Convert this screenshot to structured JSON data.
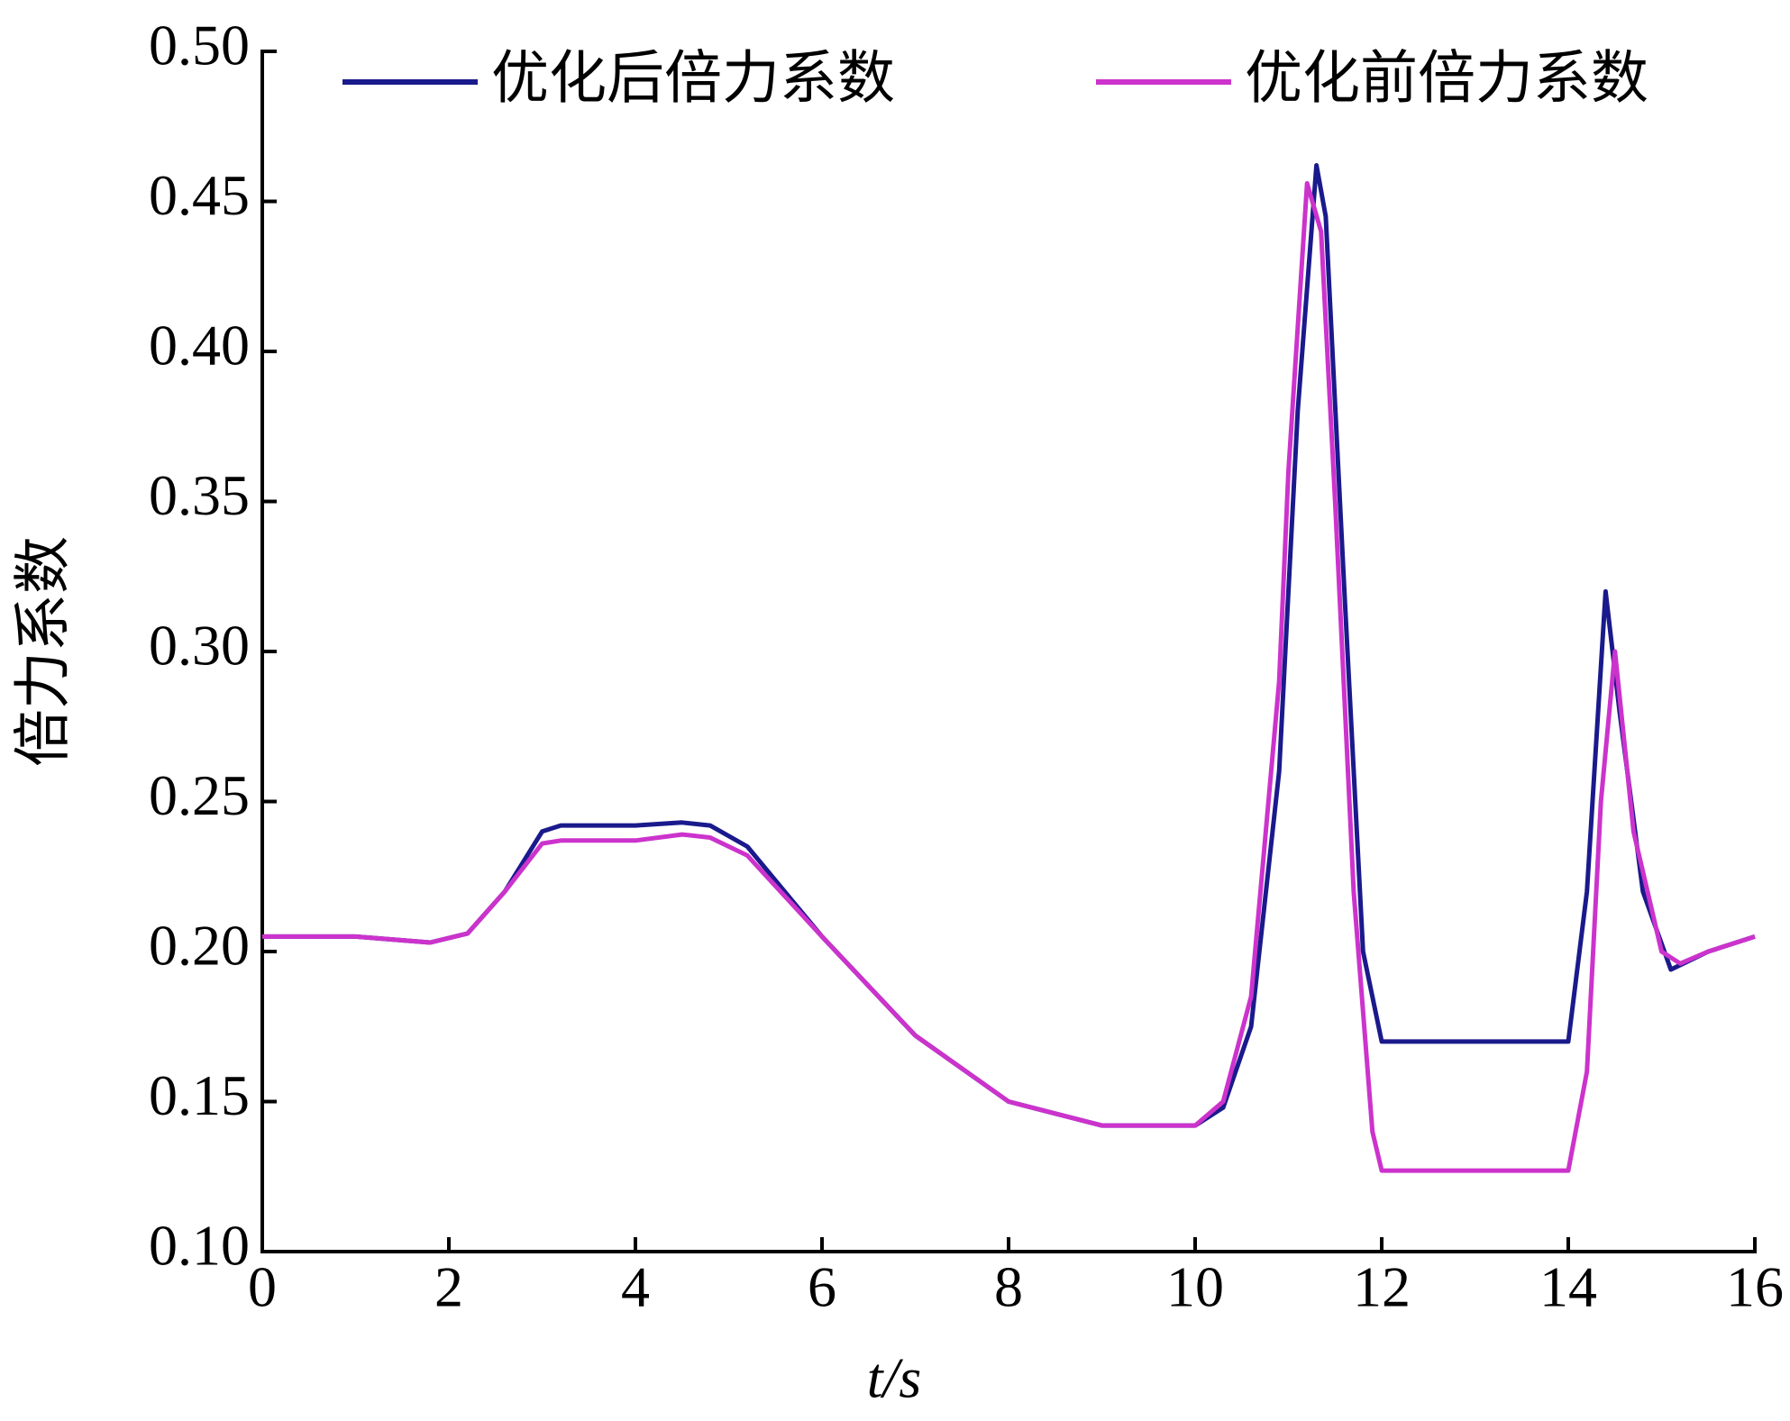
{
  "chart_data": {
    "type": "line",
    "xlabel": "t/s",
    "ylabel": "倍力系数",
    "xlim": [
      0,
      16
    ],
    "xticks": [
      0,
      2,
      4,
      6,
      8,
      10,
      12,
      14,
      16
    ],
    "ylim": [
      0.1,
      0.5
    ],
    "yticks": [
      {
        "value": 0.1,
        "label": "0.10"
      },
      0.15,
      {
        "value": 0.2,
        "label": "0.20"
      },
      0.25,
      {
        "value": 0.3,
        "label": "0.30"
      },
      0.35,
      {
        "value": 0.4,
        "label": "0.40"
      },
      0.45,
      {
        "value": 0.5,
        "label": "0.50"
      }
    ],
    "series": [
      {
        "name": "优化后倍力系数",
        "color": "#1a1a8c",
        "x": [
          0,
          1,
          1.8,
          2.2,
          2.6,
          3.0,
          3.2,
          4,
          4.5,
          4.8,
          5.2,
          6,
          7,
          8,
          9,
          10,
          10.3,
          10.6,
          10.9,
          11.1,
          11.3,
          11.4,
          11.6,
          11.8,
          12,
          13,
          14,
          14.2,
          14.4,
          14.55,
          14.8,
          15.1,
          15.5,
          16
        ],
        "values": [
          0.205,
          0.205,
          0.203,
          0.206,
          0.22,
          0.24,
          0.242,
          0.242,
          0.243,
          0.242,
          0.235,
          0.205,
          0.172,
          0.15,
          0.142,
          0.142,
          0.148,
          0.175,
          0.26,
          0.38,
          0.462,
          0.445,
          0.32,
          0.2,
          0.17,
          0.17,
          0.17,
          0.22,
          0.32,
          0.28,
          0.22,
          0.194,
          0.2,
          0.205
        ]
      },
      {
        "name": "优化前倍力系数",
        "color": "#cc33cc",
        "x": [
          0,
          1,
          1.8,
          2.2,
          2.6,
          3.0,
          3.2,
          4,
          4.5,
          4.8,
          5.2,
          6,
          7,
          8,
          9,
          10,
          10.3,
          10.6,
          10.9,
          11.0,
          11.2,
          11.35,
          11.5,
          11.7,
          11.9,
          12,
          13,
          14,
          14.2,
          14.35,
          14.5,
          14.7,
          15.0,
          15.2,
          15.5,
          16
        ],
        "values": [
          0.205,
          0.205,
          0.203,
          0.206,
          0.22,
          0.236,
          0.237,
          0.237,
          0.239,
          0.238,
          0.232,
          0.205,
          0.172,
          0.15,
          0.142,
          0.142,
          0.15,
          0.185,
          0.29,
          0.36,
          0.456,
          0.44,
          0.35,
          0.22,
          0.14,
          0.127,
          0.127,
          0.127,
          0.16,
          0.25,
          0.3,
          0.24,
          0.2,
          0.196,
          0.2,
          0.205
        ]
      }
    ]
  }
}
